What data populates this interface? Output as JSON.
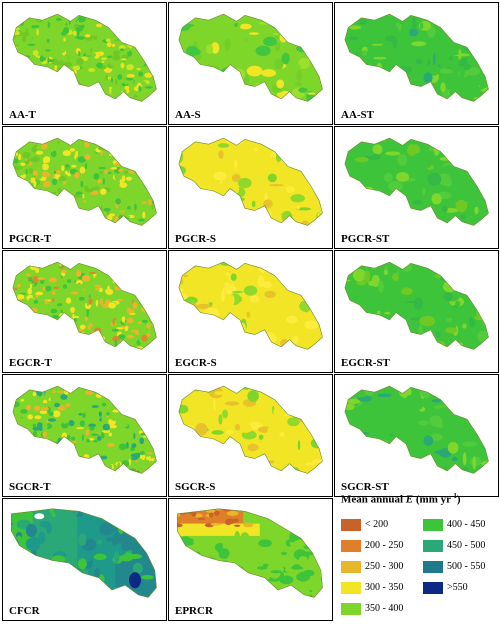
{
  "panels": [
    {
      "label": "AA-T",
      "palette": [
        "#7fd62b",
        "#6ec924",
        "#3ec43a",
        "#cfe51f",
        "#f0df22"
      ],
      "texture": "fine"
    },
    {
      "label": "AA-S",
      "palette": [
        "#7fd62b",
        "#72cf27",
        "#41c640",
        "#9be02a",
        "#f2e526"
      ],
      "texture": "smooth"
    },
    {
      "label": "AA-ST",
      "palette": [
        "#3ec43a",
        "#33b944",
        "#52cc3c",
        "#2aa878",
        "#80d72c"
      ],
      "texture": "smooth"
    },
    {
      "label": "PGCR-T",
      "palette": [
        "#7fd62b",
        "#3ec43a",
        "#f2e526",
        "#e8b62a",
        "#6ec924"
      ],
      "texture": "fine"
    },
    {
      "label": "PGCR-S",
      "palette": [
        "#f2e526",
        "#ffeb3b",
        "#8fd92a",
        "#e8c22a",
        "#7fd62b"
      ],
      "texture": "smooth"
    },
    {
      "label": "PGCR-ST",
      "palette": [
        "#3ec43a",
        "#52cc3c",
        "#80d72c",
        "#33b944",
        "#6ec924"
      ],
      "texture": "smooth"
    },
    {
      "label": "EGCR-T",
      "palette": [
        "#7fd62b",
        "#f2e526",
        "#e8b62a",
        "#3ec43a",
        "#d98a2a"
      ],
      "texture": "fine"
    },
    {
      "label": "EGCR-S",
      "palette": [
        "#f2e526",
        "#ffeb3b",
        "#8fd92a",
        "#e8c22a",
        "#7fd62b"
      ],
      "texture": "smooth"
    },
    {
      "label": "EGCR-ST",
      "palette": [
        "#3ec43a",
        "#52cc3c",
        "#80d72c",
        "#33b944",
        "#6ec924"
      ],
      "texture": "smooth"
    },
    {
      "label": "SGCR-T",
      "palette": [
        "#7fd62b",
        "#3ec43a",
        "#f2e526",
        "#2aa878",
        "#e8b62a"
      ],
      "texture": "fine"
    },
    {
      "label": "SGCR-S",
      "palette": [
        "#f2e526",
        "#ffeb3b",
        "#8fd92a",
        "#e8c22a",
        "#7fd62b"
      ],
      "texture": "smooth"
    },
    {
      "label": "SGCR-ST",
      "palette": [
        "#3ec43a",
        "#52cc3c",
        "#2aa878",
        "#33b944",
        "#80d72c"
      ],
      "texture": "smooth"
    },
    {
      "label": "CFCR",
      "palette": [
        "#2aa878",
        "#1e9a8a",
        "#3ec43a",
        "#22888e",
        "#0a2a86"
      ],
      "texture": "cfcr"
    },
    {
      "label": "EPRCR",
      "palette": [
        "#7fd62b",
        "#3ec43a",
        "#f2e526",
        "#e8b62a",
        "#c8612a"
      ],
      "texture": "eprcr"
    }
  ],
  "legend": {
    "title_prefix": "Mean annual",
    "title_var": "E",
    "title_unit": "(mm yr",
    "title_exp": "-1",
    "title_close": ")",
    "items": [
      {
        "label": "< 200",
        "color": "#c8612a"
      },
      {
        "label": "200 - 250",
        "color": "#e07f2a"
      },
      {
        "label": "250 - 300",
        "color": "#e8b62a"
      },
      {
        "label": "300 - 350",
        "color": "#f2e526"
      },
      {
        "label": "350 - 400",
        "color": "#7fd62b"
      },
      {
        "label": "400 - 450",
        "color": "#3ec43a"
      },
      {
        "label": "450 - 500",
        "color": "#2aa878"
      },
      {
        "label": "500 - 550",
        "color": "#1e7a8a"
      },
      {
        "label": ">550",
        "color": "#0a2a86"
      }
    ]
  }
}
